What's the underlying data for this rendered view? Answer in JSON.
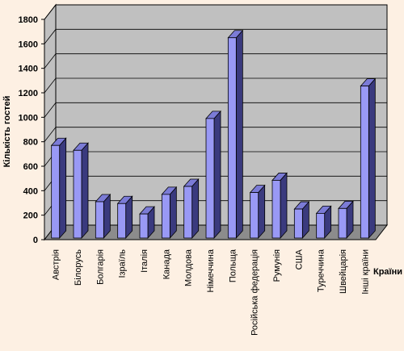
{
  "chart_data": {
    "type": "bar",
    "categories": [
      "Австрія",
      "Білорусь",
      "Болгарія",
      "Ізраїль",
      "Італія",
      "Канада",
      "Молдова",
      "Німеччина",
      "Польща",
      "Російська федерація",
      "Румунія",
      "США",
      "Туреччина",
      "Швейцарія",
      "Інші країни"
    ],
    "values": [
      770,
      730,
      310,
      295,
      210,
      370,
      435,
      990,
      1650,
      385,
      485,
      250,
      215,
      255,
      1255
    ],
    "ylabel": "Кількість гостей",
    "xlabel": "Країни",
    "ylim": [
      0,
      1800
    ],
    "yticks": [
      0,
      200,
      400,
      600,
      800,
      1000,
      1200,
      1400,
      1600,
      1800
    ],
    "grid": true,
    "legend": "none",
    "colors": {
      "bar_front": "#9999f5",
      "bar_top": "#7b7bd6",
      "bar_side": "#3a3a7e",
      "wall": "#c0c0c0",
      "floor": "#8c8c8c",
      "background": "#fdf0e3"
    }
  }
}
